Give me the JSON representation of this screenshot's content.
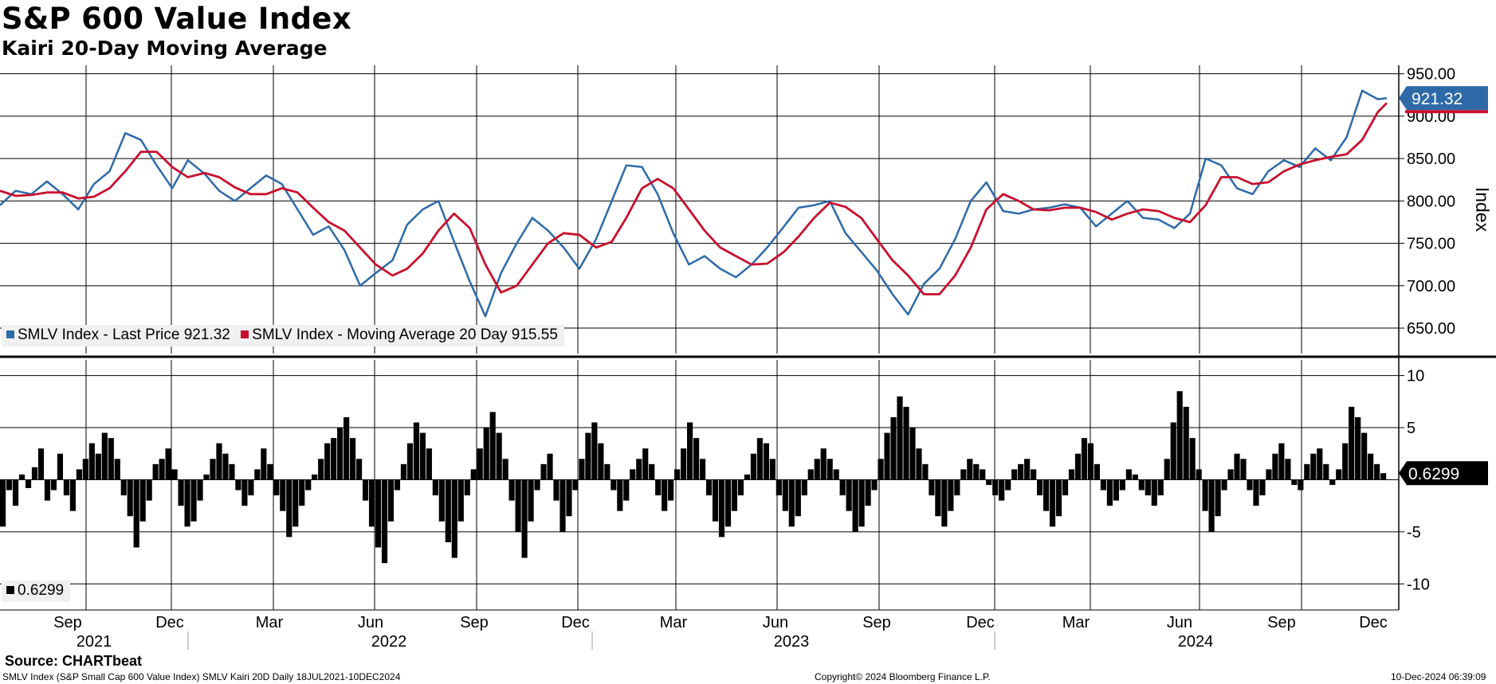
{
  "header": {
    "title": "S&P 600 Value Index",
    "subtitle": "Kairi 20-Day Moving Average"
  },
  "footer": {
    "source": "Source: CHARTbeat",
    "description": "SMLV Index (S&P Small Cap 600 Value Index) SMLV Kairi 20D  Daily 18JUL2021-10DEC2024",
    "copyright": "Copyright© 2024 Bloomberg Finance L.P.",
    "timestamp": "10-Dec-2024 06:39:09"
  },
  "colors": {
    "price": "#2e6aa8",
    "ma": "#c8102e",
    "kairi": "#000000",
    "grid": "#000000"
  },
  "chart_data": [
    {
      "type": "line",
      "panel": "upper",
      "ylabel": "Index",
      "ylim": [
        620,
        960
      ],
      "yticks": [
        "950.00",
        "900.00",
        "850.00",
        "800.00",
        "750.00",
        "700.00",
        "650.00"
      ],
      "ytick_values": [
        950,
        900,
        850,
        800,
        750,
        700,
        650
      ],
      "last_value_label": "921.32",
      "x": [
        "2021-07-19",
        "2021-08-02",
        "2021-08-16",
        "2021-08-30",
        "2021-09-13",
        "2021-09-27",
        "2021-10-11",
        "2021-10-25",
        "2021-11-08",
        "2021-11-22",
        "2021-12-06",
        "2021-12-20",
        "2022-01-03",
        "2022-01-18",
        "2022-01-31",
        "2022-02-14",
        "2022-02-28",
        "2022-03-14",
        "2022-03-28",
        "2022-04-11",
        "2022-04-25",
        "2022-05-09",
        "2022-05-23",
        "2022-06-06",
        "2022-06-20",
        "2022-07-05",
        "2022-07-18",
        "2022-08-01",
        "2022-08-15",
        "2022-08-29",
        "2022-09-12",
        "2022-09-26",
        "2022-10-10",
        "2022-10-24",
        "2022-11-07",
        "2022-11-21",
        "2022-12-05",
        "2022-12-19",
        "2023-01-03",
        "2023-01-17",
        "2023-01-30",
        "2023-02-13",
        "2023-02-27",
        "2023-03-13",
        "2023-03-27",
        "2023-04-10",
        "2023-04-24",
        "2023-05-08",
        "2023-05-22",
        "2023-06-05",
        "2023-06-20",
        "2023-07-03",
        "2023-07-17",
        "2023-07-31",
        "2023-08-14",
        "2023-08-28",
        "2023-09-11",
        "2023-09-25",
        "2023-10-09",
        "2023-10-23",
        "2023-11-06",
        "2023-11-20",
        "2023-12-04",
        "2023-12-18",
        "2024-01-02",
        "2024-01-16",
        "2024-01-29",
        "2024-02-12",
        "2024-02-26",
        "2024-03-11",
        "2024-03-25",
        "2024-04-08",
        "2024-04-22",
        "2024-05-06",
        "2024-05-20",
        "2024-06-03",
        "2024-06-17",
        "2024-07-01",
        "2024-07-15",
        "2024-07-29",
        "2024-08-12",
        "2024-08-26",
        "2024-09-09",
        "2024-09-23",
        "2024-10-07",
        "2024-10-21",
        "2024-11-04",
        "2024-11-18",
        "2024-12-02",
        "2024-12-10"
      ],
      "series": [
        {
          "name": "SMLV Index - Last Price 921.32",
          "color": "#2e6aa8",
          "values": [
            795,
            812,
            808,
            823,
            808,
            790,
            820,
            835,
            880,
            872,
            842,
            815,
            848,
            832,
            812,
            800,
            815,
            830,
            820,
            790,
            760,
            770,
            742,
            700,
            715,
            730,
            772,
            790,
            800,
            752,
            705,
            664,
            715,
            750,
            780,
            765,
            745,
            720,
            755,
            800,
            842,
            840,
            808,
            762,
            725,
            735,
            720,
            710,
            725,
            745,
            770,
            792,
            795,
            800,
            762,
            740,
            718,
            690,
            666,
            702,
            720,
            755,
            800,
            822,
            788,
            785,
            790,
            792,
            796,
            792,
            770,
            785,
            800,
            780,
            778,
            768,
            785,
            850,
            842,
            815,
            808,
            835,
            848,
            840,
            862,
            848,
            875,
            930,
            920,
            921.32
          ]
        },
        {
          "name": "SMLV Index - Moving Average 20 Day 915.55",
          "color": "#c8102e",
          "values": [
            812,
            806,
            807,
            810,
            810,
            803,
            805,
            815,
            835,
            858,
            858,
            840,
            828,
            833,
            828,
            816,
            808,
            808,
            815,
            810,
            792,
            775,
            765,
            745,
            725,
            712,
            720,
            738,
            765,
            785,
            768,
            725,
            692,
            700,
            725,
            750,
            762,
            760,
            745,
            752,
            780,
            815,
            826,
            815,
            790,
            765,
            745,
            735,
            725,
            726,
            740,
            758,
            780,
            798,
            793,
            780,
            755,
            730,
            712,
            690,
            690,
            712,
            745,
            790,
            808,
            800,
            790,
            789,
            792,
            792,
            787,
            778,
            785,
            790,
            788,
            780,
            775,
            795,
            828,
            828,
            820,
            822,
            835,
            843,
            848,
            852,
            855,
            872,
            905,
            915.55
          ]
        }
      ]
    },
    {
      "type": "bar",
      "panel": "lower",
      "ylim": [
        -12.5,
        11.5
      ],
      "yticks": [
        "10",
        "5",
        "-5",
        "-10"
      ],
      "ytick_values": [
        10,
        5,
        -5,
        -10
      ],
      "last_value_label": "0.6299",
      "legend": "0.6299",
      "series": [
        {
          "name": "SMLV Kairi 20D",
          "color": "#000000",
          "values": [
            -4.5,
            -1.0,
            -2.5,
            0.5,
            -0.8,
            1.2,
            3.0,
            -2.0,
            -1.0,
            2.5,
            -1.5,
            -3.0,
            1.0,
            2.0,
            3.5,
            2.5,
            4.5,
            4.0,
            2.0,
            -1.5,
            -3.5,
            -6.5,
            -4.0,
            -2.0,
            1.5,
            2.0,
            3.0,
            1.0,
            -2.5,
            -4.5,
            -4.0,
            -2.0,
            0.5,
            2.0,
            3.5,
            2.5,
            1.5,
            -1.0,
            -2.5,
            -1.5,
            1.0,
            3.0,
            1.5,
            -1.5,
            -3.0,
            -5.5,
            -4.5,
            -2.5,
            -1.0,
            0.5,
            2.0,
            3.5,
            4.0,
            5.0,
            6.0,
            4.0,
            2.0,
            -2.0,
            -4.5,
            -6.5,
            -8.0,
            -4.0,
            -1.0,
            1.5,
            3.5,
            5.5,
            4.5,
            3.0,
            -1.5,
            -4.0,
            -6.0,
            -7.5,
            -4.0,
            -1.5,
            1.0,
            3.0,
            5.0,
            6.5,
            4.5,
            2.0,
            -2.0,
            -5.0,
            -7.5,
            -4.0,
            -1.0,
            1.5,
            2.5,
            -2.0,
            -5.0,
            -3.5,
            -1.0,
            2.0,
            4.5,
            5.5,
            3.5,
            1.5,
            -1.0,
            -3.0,
            -2.0,
            1.0,
            2.0,
            3.0,
            1.5,
            -1.5,
            -3.0,
            -2.0,
            1.0,
            3.0,
            5.5,
            4.0,
            2.0,
            -1.5,
            -4.0,
            -5.5,
            -4.5,
            -3.0,
            -1.5,
            0.5,
            2.5,
            4.0,
            3.5,
            2.0,
            -1.5,
            -3.0,
            -4.5,
            -3.5,
            -1.5,
            1.0,
            2.0,
            3.0,
            2.0,
            1.0,
            -1.5,
            -3.0,
            -5.0,
            -4.5,
            -2.5,
            -1.0,
            2.0,
            4.5,
            6.0,
            8.0,
            7.0,
            5.0,
            3.0,
            1.5,
            -1.5,
            -3.5,
            -4.5,
            -3.0,
            -1.5,
            1.0,
            2.0,
            1.5,
            1.0,
            -0.5,
            -1.5,
            -2.0,
            -1.0,
            1.0,
            1.5,
            2.0,
            1.0,
            -1.5,
            -3.0,
            -4.5,
            -3.5,
            -1.5,
            1.0,
            2.5,
            4.0,
            3.5,
            1.5,
            -1.0,
            -2.5,
            -2.0,
            -1.0,
            1.0,
            0.5,
            -1.0,
            -1.5,
            -2.5,
            -1.5,
            2.0,
            5.5,
            8.5,
            7.0,
            4.0,
            1.0,
            -3.0,
            -5.0,
            -3.5,
            -1.0,
            1.0,
            2.5,
            2.0,
            -1.0,
            -2.5,
            -1.5,
            1.0,
            2.5,
            3.5,
            2.0,
            -0.5,
            -1.0,
            1.5,
            2.5,
            3.0,
            1.5,
            -0.5,
            1.0,
            3.5,
            7.0,
            6.0,
            4.5,
            2.5,
            1.5,
            0.6299
          ]
        }
      ]
    }
  ],
  "x_axis": {
    "months": [
      "Sep",
      "Dec",
      "Mar",
      "Jun",
      "Sep",
      "Dec",
      "Mar",
      "Jun",
      "Sep",
      "Dec",
      "Mar",
      "Jun",
      "Sep",
      "Dec"
    ],
    "years": [
      "2021",
      "2022",
      "2023",
      "2024"
    ]
  }
}
